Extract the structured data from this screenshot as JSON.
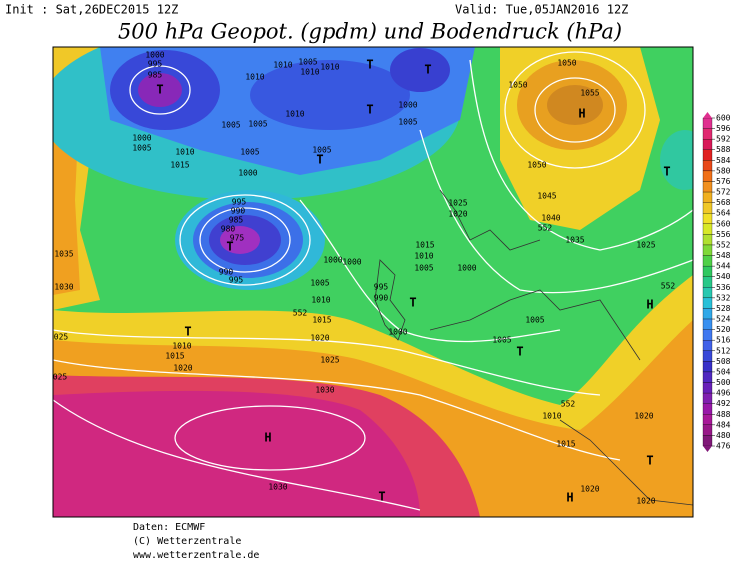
{
  "header": {
    "init": "Init : Sat,26DEC2015 12Z",
    "valid": "Valid: Tue,05JAN2016 12Z",
    "title": "500 hPa Geopot. (gpdm) und Bodendruck (hPa)"
  },
  "legend": {
    "ticks": [
      600,
      596,
      592,
      588,
      584,
      580,
      576,
      572,
      568,
      564,
      560,
      556,
      552,
      548,
      544,
      540,
      536,
      532,
      528,
      524,
      520,
      516,
      512,
      508,
      504,
      500,
      496,
      492,
      488,
      484,
      480,
      476
    ],
    "colors": [
      "#e03090",
      "#e02870",
      "#d81858",
      "#e02020",
      "#e84818",
      "#f07018",
      "#f09020",
      "#f0b020",
      "#f0c828",
      "#f0e028",
      "#d8e828",
      "#b0e030",
      "#80d838",
      "#50d048",
      "#30c860",
      "#28c888",
      "#28c8b0",
      "#28c0d8",
      "#30a8e8",
      "#3890f0",
      "#4078f0",
      "#4060e8",
      "#3848d8",
      "#3830c8",
      "#5028c0",
      "#6820b8",
      "#8020b0",
      "#9818a8",
      "#a81898",
      "#981888",
      "#801878"
    ]
  },
  "map": {
    "labels": [
      "1000",
      "995",
      "985",
      "T",
      "1010",
      "1010",
      "1005",
      "1010",
      "1010",
      "T",
      "T",
      "1050",
      "1050",
      "1055",
      "H",
      "1000",
      "1005",
      "T",
      "1005",
      "1005",
      "1010",
      "1000",
      "1005",
      "1010",
      "1015",
      "1005",
      "1000",
      "1005",
      "T",
      "1050",
      "995",
      "990",
      "985",
      "980",
      "975",
      "T",
      "990",
      "995",
      "1045",
      "1040",
      "1035",
      "552",
      "T",
      "1025",
      "1020",
      "1015",
      "1010",
      "1005",
      "1000",
      "1025",
      "1035",
      "1030",
      "1000",
      "1000",
      "1005",
      "1010",
      "1015",
      "552",
      "995",
      "990",
      "T",
      "1000",
      "1005",
      "1005",
      "T",
      "H",
      "552",
      "025",
      "T",
      "1010",
      "1015",
      "1020",
      "1020",
      "1025",
      "025",
      "1030",
      "552",
      "1010",
      "1020",
      "1015",
      "H",
      "T",
      "1030",
      "T",
      "H",
      "1020",
      "1020"
    ]
  },
  "footer": {
    "lines": [
      "Daten: ECMWF",
      "(C) Wetterzentrale",
      "www.wetterzentrale.de"
    ]
  }
}
